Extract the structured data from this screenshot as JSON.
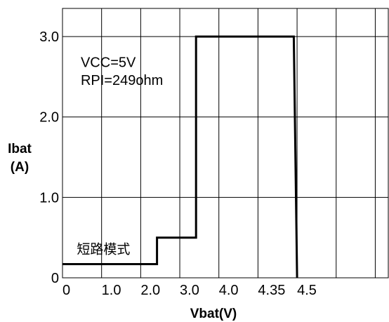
{
  "chart_data": {
    "type": "line",
    "xlabel": "Vbat(V)",
    "ylabel_line1": "Ibat",
    "ylabel_line2": "(A)",
    "xlim": [
      0,
      5.0
    ],
    "ylim": [
      0,
      3.35
    ],
    "x_ticks": [
      {
        "value": 0.0,
        "label": "0"
      },
      {
        "value": 1.0,
        "label": "1.0"
      },
      {
        "value": 2.0,
        "label": "2.0"
      },
      {
        "value": 3.0,
        "label": "3.0"
      },
      {
        "value": 4.0,
        "label": "4.0"
      },
      {
        "value": 4.35,
        "label": "4.35"
      },
      {
        "value": 4.5,
        "label": "4.5"
      }
    ],
    "x_gridlines": [
      0,
      0.6,
      1.2,
      1.8,
      2.4,
      3.0,
      3.6,
      4.2,
      4.8
    ],
    "y_ticks": [
      {
        "value": 0,
        "label": "0"
      },
      {
        "value": 1.0,
        "label": "1.0"
      },
      {
        "value": 2.0,
        "label": "2.0"
      },
      {
        "value": 3.0,
        "label": "3.0"
      }
    ],
    "grid": true,
    "series": [
      {
        "points": [
          [
            0,
            0.17
          ],
          [
            1.45,
            0.17
          ],
          [
            1.45,
            0.5
          ],
          [
            2.05,
            0.5
          ],
          [
            2.05,
            3.0
          ],
          [
            3.55,
            3.0
          ],
          [
            3.6,
            0.0
          ]
        ]
      }
    ],
    "annotations": [
      {
        "text": "VCC=5V",
        "x": 0.28,
        "y": 2.62
      },
      {
        "text": "RPI=249ohm",
        "x": 0.28,
        "y": 2.4
      },
      {
        "text": "短路模式",
        "x": 0.22,
        "y": 0.3
      }
    ]
  }
}
